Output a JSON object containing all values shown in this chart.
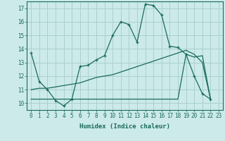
{
  "xlabel": "Humidex (Indice chaleur)",
  "bg_color": "#cceaea",
  "grid_color": "#aacfcf",
  "line_color": "#1a6b5a",
  "xlim": [
    -0.5,
    23.5
  ],
  "ylim": [
    9.5,
    17.5
  ],
  "xticks": [
    0,
    1,
    2,
    3,
    4,
    5,
    6,
    7,
    8,
    9,
    10,
    11,
    12,
    13,
    14,
    15,
    16,
    17,
    18,
    19,
    20,
    21,
    22,
    23
  ],
  "yticks": [
    10,
    11,
    12,
    13,
    14,
    15,
    16,
    17
  ],
  "line1_x": [
    0,
    1,
    2,
    3,
    4,
    5,
    6,
    7,
    8,
    9,
    10,
    11,
    12,
    13,
    14,
    15,
    16,
    17,
    18,
    19,
    20,
    21,
    22
  ],
  "line1_y": [
    13.7,
    11.6,
    11.0,
    10.2,
    9.8,
    10.3,
    12.7,
    12.8,
    13.2,
    13.5,
    15.0,
    16.0,
    15.8,
    14.5,
    17.3,
    17.2,
    16.5,
    14.2,
    14.1,
    13.6,
    12.0,
    10.7,
    10.3
  ],
  "line2_x": [
    0,
    1,
    2,
    3,
    4,
    5,
    6,
    7,
    8,
    9,
    10,
    11,
    12,
    13,
    14,
    15,
    16,
    17,
    18,
    19,
    20,
    21,
    22
  ],
  "line2_y": [
    11.0,
    11.1,
    11.1,
    11.2,
    11.3,
    11.4,
    11.5,
    11.7,
    11.9,
    12.0,
    12.1,
    12.3,
    12.5,
    12.7,
    12.9,
    13.1,
    13.3,
    13.5,
    13.7,
    13.9,
    13.6,
    13.0,
    10.3
  ],
  "line3_x": [
    0,
    1,
    2,
    3,
    4,
    5,
    6,
    7,
    8,
    9,
    10,
    11,
    12,
    13,
    14,
    15,
    16,
    17,
    18,
    19,
    20,
    21,
    22
  ],
  "line3_y": [
    10.3,
    10.3,
    10.3,
    10.3,
    10.3,
    10.3,
    10.3,
    10.3,
    10.3,
    10.3,
    10.3,
    10.3,
    10.3,
    10.3,
    10.3,
    10.3,
    10.3,
    10.3,
    10.3,
    13.6,
    13.4,
    13.5,
    10.3
  ],
  "tick_fontsize": 5.5,
  "xlabel_fontsize": 6.5
}
